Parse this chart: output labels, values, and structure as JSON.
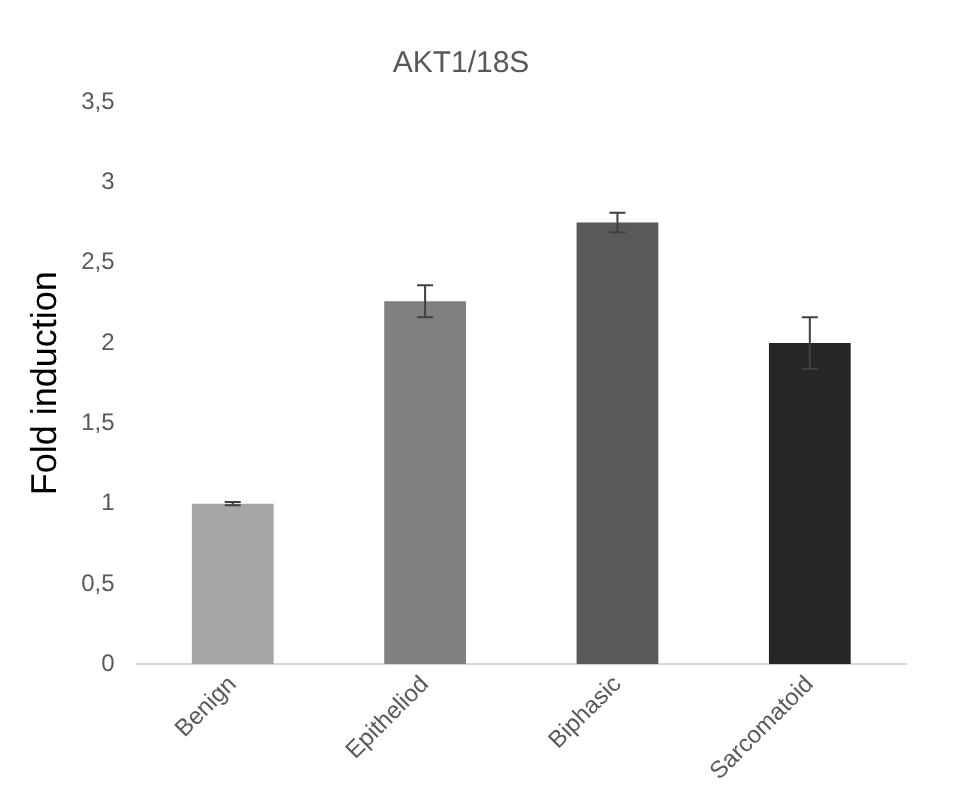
{
  "chart_data": {
    "type": "bar",
    "title": "AKT1/18S",
    "ylabel": "Fold induction",
    "categories": [
      "Benign",
      "Epitheliod",
      "Biphasic",
      "Sarcomatoid"
    ],
    "values": [
      1.0,
      2.26,
      2.75,
      2.0
    ],
    "errors": [
      0.01,
      0.1,
      0.06,
      0.16
    ],
    "colors": [
      "#a6a6a6",
      "#808080",
      "#595959",
      "#262626"
    ],
    "ylim": [
      0,
      3.5
    ],
    "yticks": [
      0,
      {
        "value": 0.5,
        "label": "0,5"
      },
      1,
      {
        "value": 1.5,
        "label": "1,5"
      },
      2,
      {
        "value": 2.5,
        "label": "2,5"
      },
      3,
      {
        "value": 3.5,
        "label": "3,5"
      }
    ],
    "grid": false
  }
}
